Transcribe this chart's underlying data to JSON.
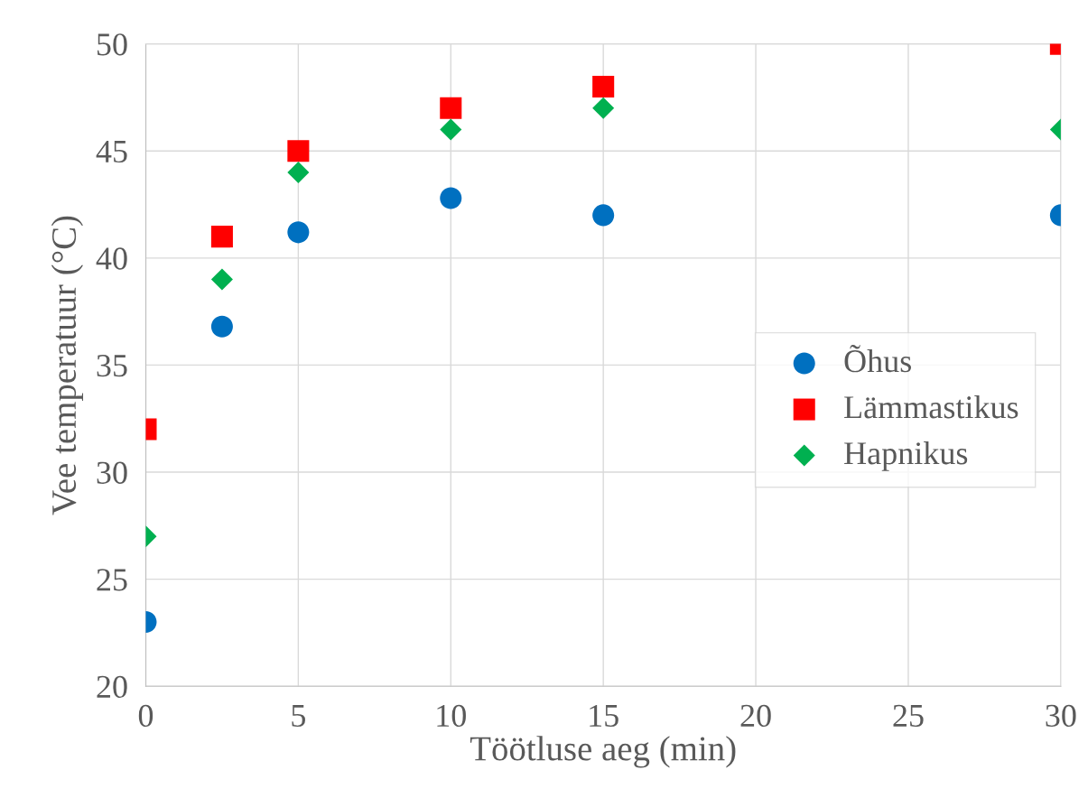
{
  "chart_data": {
    "type": "scatter",
    "xlabel": "Töötluse aeg (min)",
    "ylabel": "Vee temperatuur (°C)",
    "xlim": [
      0,
      30
    ],
    "xticks": [
      0,
      5,
      10,
      15,
      20,
      25,
      30
    ],
    "ylim": [
      20,
      50
    ],
    "yticks": [
      20,
      25,
      30,
      35,
      40,
      45,
      50
    ],
    "grid": true,
    "legend": "right",
    "x": [
      0,
      2.5,
      5,
      10,
      15,
      30
    ],
    "series": [
      {
        "name": "Õhus",
        "color": "#0070c0",
        "marker": "circle",
        "values": [
          23,
          36.8,
          41.2,
          42.8,
          42,
          42
        ]
      },
      {
        "name": "Lämmastikus",
        "color": "#ff0000",
        "marker": "square",
        "values": [
          32,
          41,
          45,
          47,
          48,
          50
        ]
      },
      {
        "name": "Hapnikus",
        "color": "#00b050",
        "marker": "diamond",
        "values": [
          27,
          39,
          44,
          46,
          47,
          46
        ]
      }
    ]
  }
}
